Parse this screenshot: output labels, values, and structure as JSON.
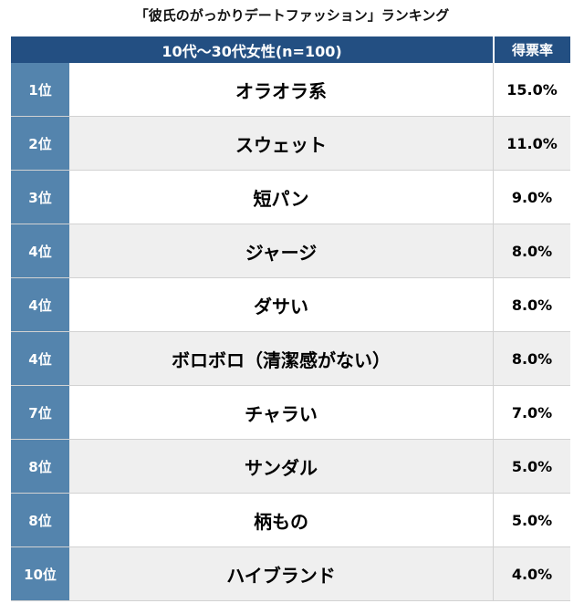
{
  "chart_data": {
    "type": "table",
    "title": "「彼氏のがっかりデートファッション」ランキング",
    "header": {
      "group": "10代〜30代女性(n=100)",
      "rate": "得票率"
    },
    "rows": [
      {
        "rank": "1位",
        "item": "オラオラ系",
        "rate": "15.0%",
        "value": 15.0
      },
      {
        "rank": "2位",
        "item": "スウェット",
        "rate": "11.0%",
        "value": 11.0
      },
      {
        "rank": "3位",
        "item": "短パン",
        "rate": "9.0%",
        "value": 9.0
      },
      {
        "rank": "4位",
        "item": "ジャージ",
        "rate": "8.0%",
        "value": 8.0
      },
      {
        "rank": "4位",
        "item": "ダサい",
        "rate": "8.0%",
        "value": 8.0
      },
      {
        "rank": "4位",
        "item": "ボロボロ（清潔感がない）",
        "rate": "8.0%",
        "value": 8.0
      },
      {
        "rank": "7位",
        "item": "チャラい",
        "rate": "7.0%",
        "value": 7.0
      },
      {
        "rank": "8位",
        "item": "サンダル",
        "rate": "5.0%",
        "value": 5.0
      },
      {
        "rank": "8位",
        "item": "柄もの",
        "rate": "5.0%",
        "value": 5.0
      },
      {
        "rank": "10位",
        "item": "ハイブランド",
        "rate": "4.0%",
        "value": 4.0
      }
    ]
  },
  "colors": {
    "header_bg": "#234f82",
    "rank_bg": "#5484ad",
    "row_alt_bg": "#efefef"
  }
}
